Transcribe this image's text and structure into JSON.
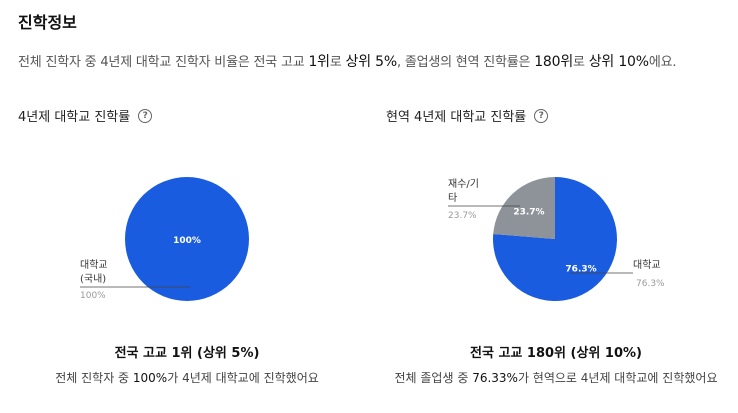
{
  "section_title": "진학정보",
  "summary": {
    "p1": "전체 진학자 중 4년제 대학교 진학자 비율은 전국 고교 ",
    "e1": "1위",
    "p2": "로 ",
    "e2": "상위 5%",
    "p3": ", 졸업생의 현역 진학률은 ",
    "e3": "180위",
    "p4": "로 ",
    "e4": "상위 10%",
    "p5": "에요."
  },
  "help_icon": "question-circle-icon",
  "colors": {
    "blue": "#1a5ce0",
    "gray": "#8e9399"
  },
  "chart_data": [
    {
      "type": "pie",
      "title": "4년제 대학교 진학률",
      "slices": [
        {
          "label": "대학교\n(국내)",
          "value": 100,
          "value_label": "100%",
          "outside_value": "100%",
          "color": "#1a5ce0"
        }
      ],
      "caption": "전국 고교 1위 (상위 5%)",
      "desc": {
        "p1": "전체 진학자 중 ",
        "em": "100%",
        "p2": "가 4년제 대학교에 진학했어요"
      }
    },
    {
      "type": "pie",
      "title": "현역 4년제 대학교 진학률",
      "slices": [
        {
          "label": "대학교",
          "value": 76.3,
          "value_label": "76.3%",
          "outside_value": "76.3%",
          "color": "#1a5ce0"
        },
        {
          "label": "재수/기\n타",
          "value": 23.7,
          "value_label": "23.7%",
          "outside_value": "23.7%",
          "color": "#8e9399"
        }
      ],
      "caption": "전국 고교 180위 (상위 10%)",
      "desc": {
        "p1": "전체 졸업생 중 ",
        "em": "76.33%",
        "p2": "가 현역으로 4년제 대학교에 진학했어요"
      }
    }
  ]
}
